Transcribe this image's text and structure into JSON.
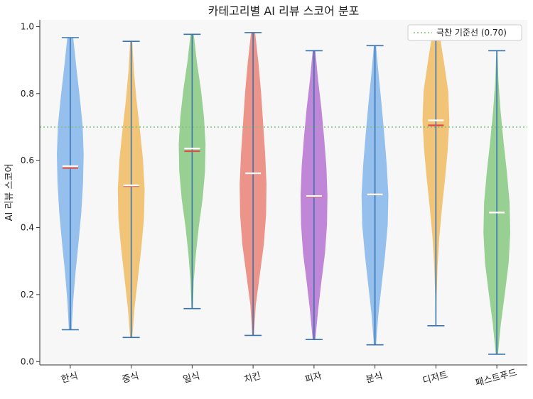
{
  "chart_data": {
    "type": "violin",
    "title": "카테고리별 AI 리뷰 스코어 분포",
    "xlabel": "",
    "ylabel": "AI 리뷰 스코어",
    "ylim": [
      -0.01,
      1.02
    ],
    "yticks": [
      0.0,
      0.2,
      0.4,
      0.6,
      0.8,
      1.0
    ],
    "ytick_labels": [
      "0.0",
      "0.2",
      "0.4",
      "0.6",
      "0.8",
      "1.0"
    ],
    "grid": false,
    "legend": {
      "position": "top-right",
      "label": "극찬 기준선 (0.70)"
    },
    "reference_line": {
      "y": 0.7,
      "label": "극찬 기준선 (0.70)",
      "color": "#7cc47c",
      "style": "dotted"
    },
    "categories": [
      "한식",
      "중식",
      "일식",
      "치킨",
      "피자",
      "분식",
      "디저트",
      "패스트푸드"
    ],
    "colors": [
      "#7fb3ec",
      "#f0b85a",
      "#82c67c",
      "#ea7e72",
      "#b36ccf",
      "#7fb3ec",
      "#f0b85a",
      "#82c67c"
    ],
    "whisker_color": "#3a75b0",
    "mean_color": "#ffffff",
    "median_color": "#d9534f",
    "series": [
      {
        "category": "한식",
        "min": 0.095,
        "max": 0.967,
        "mean": 0.583,
        "median": 0.578,
        "profile": [
          0.1,
          0.22,
          0.4,
          0.62,
          0.82,
          0.95,
          1.0,
          0.92,
          0.7,
          0.45,
          0.22
        ]
      },
      {
        "category": "중식",
        "min": 0.072,
        "max": 0.956,
        "mean": 0.526,
        "median": 0.524,
        "profile": [
          0.08,
          0.25,
          0.5,
          0.75,
          0.95,
          1.0,
          0.88,
          0.65,
          0.4,
          0.2,
          0.08
        ]
      },
      {
        "category": "일식",
        "min": 0.158,
        "max": 0.977,
        "mean": 0.636,
        "median": 0.628,
        "profile": [
          0.05,
          0.12,
          0.28,
          0.5,
          0.78,
          0.96,
          1.0,
          0.88,
          0.65,
          0.35,
          0.12
        ]
      },
      {
        "category": "치킨",
        "min": 0.078,
        "max": 0.982,
        "mean": 0.562,
        "median": 0.562,
        "profile": [
          0.06,
          0.2,
          0.5,
          0.8,
          0.97,
          1.0,
          0.9,
          0.75,
          0.6,
          0.4,
          0.15
        ]
      },
      {
        "category": "피자",
        "min": 0.066,
        "max": 0.928,
        "mean": 0.494,
        "median": 0.492,
        "profile": [
          0.1,
          0.3,
          0.55,
          0.82,
          0.97,
          1.0,
          0.92,
          0.75,
          0.55,
          0.3,
          0.1
        ]
      },
      {
        "category": "분식",
        "min": 0.05,
        "max": 0.943,
        "mean": 0.499,
        "median": 0.499,
        "profile": [
          0.08,
          0.25,
          0.5,
          0.75,
          0.95,
          1.0,
          0.88,
          0.7,
          0.5,
          0.28,
          0.08
        ]
      },
      {
        "category": "디저트",
        "min": 0.107,
        "max": 0.982,
        "mean": 0.72,
        "median": 0.705,
        "profile": [
          0.02,
          0.05,
          0.12,
          0.25,
          0.45,
          0.68,
          0.88,
          1.0,
          0.92,
          0.6,
          0.25
        ]
      },
      {
        "category": "패스트푸드",
        "min": 0.022,
        "max": 0.928,
        "mean": 0.445,
        "median": 0.445,
        "profile": [
          0.08,
          0.3,
          0.6,
          0.88,
          1.0,
          0.95,
          0.75,
          0.5,
          0.28,
          0.12,
          0.04
        ]
      }
    ]
  }
}
